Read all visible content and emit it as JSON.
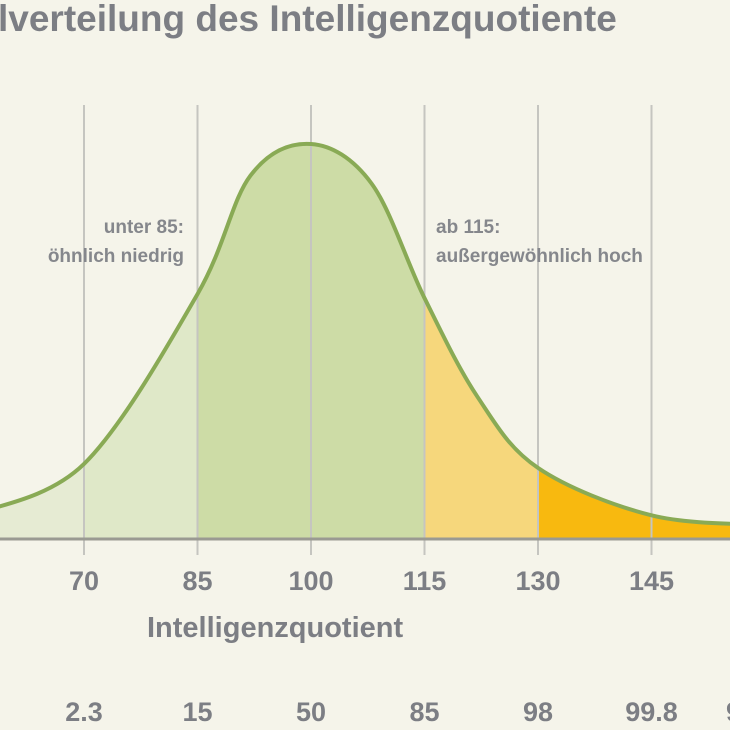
{
  "chart_data": {
    "type": "area",
    "title": "lverteilung des Intelligenzquotiente",
    "xlabel": "Intelligenzquotient",
    "ylabel": "",
    "xlim": [
      58.9,
      155.4
    ],
    "x_ticks": [
      70,
      85,
      100,
      115,
      130,
      145
    ],
    "percentile_labels": [
      {
        "iq": 70,
        "label": "2.3"
      },
      {
        "iq": 85,
        "label": "15"
      },
      {
        "iq": 100,
        "label": "50"
      },
      {
        "iq": 115,
        "label": "85"
      },
      {
        "iq": 130,
        "label": "98"
      },
      {
        "iq": 145,
        "label": "99.8"
      },
      {
        "iq": 160,
        "label": "9"
      }
    ],
    "curve": {
      "x": [
        55,
        70,
        85,
        92,
        100,
        108,
        115,
        122,
        130,
        145,
        160
      ],
      "y": [
        0.06,
        0.19,
        0.62,
        0.92,
        1.0,
        0.9,
        0.61,
        0.36,
        0.18,
        0.06,
        0.035
      ]
    },
    "bands": [
      {
        "from": 50,
        "to": 70,
        "color": "#e6ebd3"
      },
      {
        "from": 70,
        "to": 85,
        "color": "#dfe8c8"
      },
      {
        "from": 85,
        "to": 115,
        "color": "#cddca6"
      },
      {
        "from": 115,
        "to": 130,
        "color": "#f6d77c"
      },
      {
        "from": 130,
        "to": 170,
        "color": "#f8b90f"
      }
    ],
    "annotations": [
      {
        "lines": [
          "unter 85:",
          "öhnlich niedrig"
        ]
      },
      {
        "lines": [
          "ab 115:",
          "außergewöhnlich hoch"
        ]
      }
    ],
    "grid": "vertical",
    "colors": {
      "curve": "#89aa55",
      "grid": "#c5c5c0",
      "axis": "#9a9a92",
      "text": "#7c7e84"
    }
  }
}
